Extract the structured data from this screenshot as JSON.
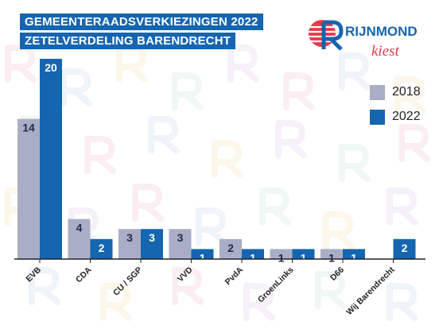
{
  "header": {
    "title_line1": "GEMEENTERAADSVERKIEZINGEN 2022",
    "title_line2": "ZETELVERDELING BARENDRECHT"
  },
  "logo": {
    "brand": "RIJNMOND",
    "tagline": "kiest",
    "brand_color": "#1565b0",
    "accent_color": "#e8374a"
  },
  "colors": {
    "series_2018": "#a9aec6",
    "series_2022": "#1565b0",
    "label_on_2018": "#1f2a44",
    "label_on_2022": "#ffffff"
  },
  "chart_data": {
    "type": "bar",
    "title": "",
    "xlabel": "",
    "ylabel": "",
    "categories": [
      "EVB",
      "CDA",
      "CU / SGP",
      "VVD",
      "PvdA",
      "GroenLinks",
      "D66",
      "Wij Barendrecht"
    ],
    "series": [
      {
        "name": "2018",
        "values": [
          14,
          4,
          3,
          3,
          2,
          1,
          1,
          null
        ]
      },
      {
        "name": "2022",
        "values": [
          20,
          2,
          3,
          1,
          1,
          1,
          1,
          2
        ]
      }
    ],
    "ylim": [
      0,
      20
    ],
    "grid": false,
    "legend_position": "right",
    "data_labels": true
  }
}
